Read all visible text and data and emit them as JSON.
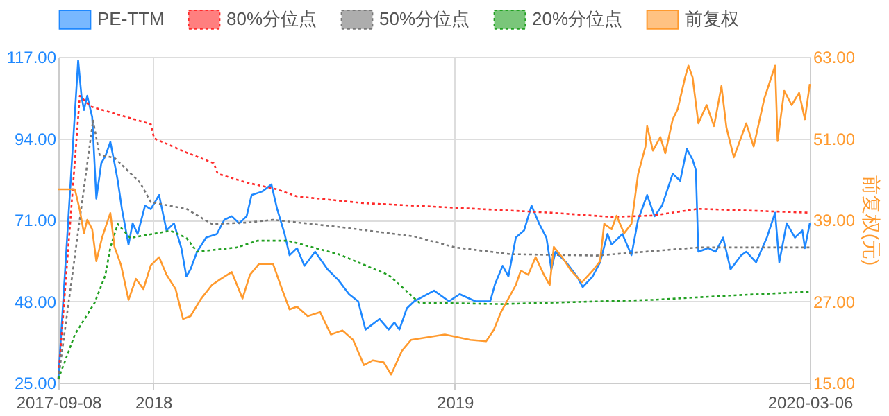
{
  "chart_data": {
    "type": "line",
    "y2label": "前复权(元)",
    "legend": "top",
    "grid": true,
    "xlim": [
      "2017-09-08",
      "2020-03-06"
    ],
    "xticks": [
      {
        "value": "2017-09-08",
        "label": "2017-09-08"
      },
      {
        "value": "2018-01-01",
        "label": "2018"
      },
      {
        "value": "2019-01-01",
        "label": "2019"
      },
      {
        "value": "2020-03-06",
        "label": "2020-03-06"
      }
    ],
    "ylim": [
      25,
      117
    ],
    "yticks": [
      {
        "value": 25,
        "label": "25.00"
      },
      {
        "value": 48,
        "label": "48.00"
      },
      {
        "value": 71,
        "label": "71.00"
      },
      {
        "value": 94,
        "label": "94.00"
      },
      {
        "value": 117,
        "label": "117.00"
      }
    ],
    "y2lim": [
      15,
      63
    ],
    "y2ticks": [
      {
        "value": 15,
        "label": "15.00"
      },
      {
        "value": 27,
        "label": "27.00"
      },
      {
        "value": 39,
        "label": "39.00"
      },
      {
        "value": 51,
        "label": "51.00"
      },
      {
        "value": 63,
        "label": "63.00"
      }
    ],
    "series": [
      {
        "name": "PE-TTM",
        "color": "#1e88ff",
        "line_style": "solid",
        "x": [
          "2017-09-08",
          "2017-10-02",
          "2017-10-06",
          "2017-10-09",
          "2017-10-13",
          "2017-10-19",
          "2017-10-24",
          "2017-10-30",
          "2017-11-04",
          "2017-11-10",
          "2017-11-15",
          "2017-11-19",
          "2017-11-24",
          "2017-12-02",
          "2017-12-07",
          "2017-12-13",
          "2017-12-22",
          "2017-12-29",
          "2018-01-08",
          "2018-01-17",
          "2018-01-26",
          "2018-02-04",
          "2018-02-10",
          "2018-02-15",
          "2018-02-23",
          "2018-03-06",
          "2018-03-19",
          "2018-03-28",
          "2018-04-06",
          "2018-04-15",
          "2018-04-24",
          "2018-04-30",
          "2018-05-13",
          "2018-05-24",
          "2018-05-31",
          "2018-06-09",
          "2018-06-15",
          "2018-06-24",
          "2018-07-03",
          "2018-07-16",
          "2018-07-31",
          "2018-08-13",
          "2018-08-26",
          "2018-09-06",
          "2018-09-15",
          "2018-10-02",
          "2018-10-13",
          "2018-10-20",
          "2018-10-26",
          "2018-11-04",
          "2018-11-13",
          "2018-12-07",
          "2018-12-25",
          "2019-01-07",
          "2019-01-26",
          "2019-02-13",
          "2019-02-19",
          "2019-02-28",
          "2019-03-07",
          "2019-03-16",
          "2019-03-26",
          "2019-04-04",
          "2019-04-13",
          "2019-04-22",
          "2019-04-28",
          "2019-05-03",
          "2019-05-16",
          "2019-05-29",
          "2019-06-05",
          "2019-06-17",
          "2019-06-26",
          "2019-07-05",
          "2019-07-10",
          "2019-07-23",
          "2019-08-03",
          "2019-08-11",
          "2019-08-22",
          "2019-08-31",
          "2019-09-09",
          "2019-09-22",
          "2019-10-01",
          "2019-10-09",
          "2019-10-16",
          "2019-10-20",
          "2019-10-23",
          "2019-11-04",
          "2019-11-13",
          "2019-11-22",
          "2019-12-01",
          "2019-12-14",
          "2019-12-20",
          "2020-01-01",
          "2020-01-14",
          "2020-01-24",
          "2020-01-29",
          "2020-02-07",
          "2020-02-17",
          "2020-02-26",
          "2020-02-29",
          "2020-03-06"
        ],
        "values": [
          26,
          116,
          106,
          102,
          106,
          100,
          77,
          87,
          89,
          93,
          87,
          82,
          74,
          64,
          70,
          67,
          75,
          74,
          78,
          68,
          70,
          63,
          55,
          57,
          62,
          66,
          67,
          71,
          72,
          70,
          72,
          78,
          79,
          81,
          74,
          67,
          61,
          63,
          58,
          62,
          57,
          54,
          50,
          48,
          40,
          43,
          40,
          42,
          40,
          46,
          48,
          51,
          48,
          50,
          48,
          48,
          53,
          58,
          55,
          66,
          68,
          75,
          70,
          66,
          57,
          62,
          59,
          55,
          52,
          55,
          59,
          67,
          64,
          67,
          61,
          71,
          78,
          72,
          75,
          84,
          82,
          91,
          88,
          85,
          62,
          63,
          62,
          66,
          57,
          61,
          62,
          59,
          66,
          73,
          59,
          70,
          66,
          68,
          63,
          70
        ]
      },
      {
        "name": "80%分位点",
        "color": "#ff2a2a",
        "line_style": "dotted",
        "x": [
          "2017-09-08",
          "2017-10-04",
          "2017-10-17",
          "2017-12-29",
          "2018-01-02",
          "2018-02-10",
          "2018-03-15",
          "2018-03-20",
          "2018-04-24",
          "2018-05-31",
          "2018-06-24",
          "2018-09-13",
          "2018-12-25",
          "2019-04-28",
          "2019-07-10",
          "2019-08-29",
          "2019-10-23",
          "2020-03-06"
        ],
        "values": [
          26,
          106,
          103,
          98,
          94,
          90,
          87,
          84,
          81.5,
          79.6,
          77.6,
          75.7,
          74.5,
          73,
          71.8,
          72.2,
          74.1,
          73
        ]
      },
      {
        "name": "50%分位点",
        "color": "#777777",
        "line_style": "dotted",
        "x": [
          "2017-09-08",
          "2017-10-20",
          "2017-10-28",
          "2017-11-15",
          "2017-12-16",
          "2017-12-29",
          "2018-02-10",
          "2018-03-13",
          "2018-04-24",
          "2018-05-26",
          "2018-08-13",
          "2018-11-13",
          "2019-01-02",
          "2019-03-09",
          "2019-06-22",
          "2019-10-23",
          "2020-03-06"
        ],
        "values": [
          26,
          99,
          89.3,
          88.5,
          81.5,
          76,
          74.1,
          69.8,
          70.2,
          71,
          69,
          66.3,
          63.2,
          61.3,
          60.9,
          63.2,
          63.2
        ]
      },
      {
        "name": "20%分位点",
        "color": "#22a022",
        "line_style": "dotted",
        "x": [
          "2017-09-08",
          "2017-09-28",
          "2017-10-22",
          "2017-11-04",
          "2017-11-10",
          "2017-11-19",
          "2017-12-04",
          "2018-01-22",
          "2018-02-10",
          "2018-02-23",
          "2018-04-12",
          "2018-05-07",
          "2018-06-13",
          "2018-08-13",
          "2018-10-13",
          "2018-10-26",
          "2018-11-19",
          "2019-02-26",
          "2019-08-29",
          "2019-11-29",
          "2020-03-06"
        ],
        "values": [
          26,
          38.6,
          47.6,
          55.4,
          63.2,
          69.8,
          65.9,
          67.9,
          65.9,
          62,
          63.2,
          65.1,
          65.1,
          61.3,
          55.4,
          52.7,
          47.6,
          47.2,
          48.4,
          49.6,
          50.7
        ]
      },
      {
        "name": "前复权",
        "color": "#ff9a2e",
        "line_style": "solid",
        "axis": "y2",
        "x": [
          "2017-09-08",
          "2017-09-28",
          "2017-09-30",
          "2017-10-04",
          "2017-10-09",
          "2017-10-13",
          "2017-10-19",
          "2017-10-24",
          "2017-10-31",
          "2017-11-10",
          "2017-11-15",
          "2017-11-23",
          "2017-12-02",
          "2017-12-11",
          "2017-12-20",
          "2017-12-29",
          "2018-01-08",
          "2018-01-17",
          "2018-01-28",
          "2018-02-06",
          "2018-02-15",
          "2018-02-28",
          "2018-03-13",
          "2018-03-24",
          "2018-04-06",
          "2018-04-19",
          "2018-04-28",
          "2018-05-09",
          "2018-05-26",
          "2018-06-04",
          "2018-06-15",
          "2018-06-24",
          "2018-07-07",
          "2018-07-22",
          "2018-08-04",
          "2018-08-18",
          "2018-08-31",
          "2018-09-13",
          "2018-09-24",
          "2018-10-07",
          "2018-10-16",
          "2018-10-29",
          "2018-11-09",
          "2018-12-20",
          "2019-01-20",
          "2019-02-08",
          "2019-02-17",
          "2019-02-26",
          "2019-03-07",
          "2019-03-16",
          "2019-03-22",
          "2019-03-31",
          "2019-04-09",
          "2019-04-19",
          "2019-04-26",
          "2019-05-01",
          "2019-05-11",
          "2019-05-22",
          "2019-06-04",
          "2019-06-17",
          "2019-06-26",
          "2019-07-01",
          "2019-07-10",
          "2019-07-16",
          "2019-07-25",
          "2019-08-03",
          "2019-08-11",
          "2019-08-20",
          "2019-08-22",
          "2019-08-29",
          "2019-09-07",
          "2019-09-13",
          "2019-09-22",
          "2019-09-28",
          "2019-10-07",
          "2019-10-11",
          "2019-10-16",
          "2019-10-23",
          "2019-11-02",
          "2019-11-11",
          "2019-11-20",
          "2019-11-26",
          "2019-12-05",
          "2019-12-20",
          "2019-12-29",
          "2020-01-11",
          "2020-01-24",
          "2020-01-27",
          "2020-02-04",
          "2020-02-13",
          "2020-02-22",
          "2020-02-29",
          "2020-03-06"
        ],
        "values": [
          43.5,
          43.5,
          42.5,
          40.4,
          37,
          39,
          37.6,
          32.9,
          36.4,
          40,
          35,
          32.3,
          27.2,
          30.3,
          28.8,
          32.3,
          33.5,
          30.9,
          28.8,
          24.4,
          24.8,
          27.4,
          29.4,
          30.3,
          31.3,
          27.4,
          30.9,
          32.5,
          32.5,
          29.4,
          25.8,
          26.2,
          24.8,
          25.4,
          22.1,
          22.7,
          21.3,
          17.6,
          18.3,
          18,
          16.2,
          19.7,
          21.3,
          22.1,
          21.3,
          21.1,
          22.7,
          25.4,
          27.4,
          29.4,
          31.5,
          30.9,
          33.5,
          30.9,
          29.4,
          35,
          33.5,
          31.5,
          29.8,
          31.5,
          32.9,
          38.4,
          37.6,
          39.6,
          37,
          38.4,
          45.7,
          49.8,
          52.8,
          49.2,
          51.2,
          48.8,
          53.8,
          55.3,
          60,
          61.7,
          60,
          53.2,
          55.9,
          52.8,
          58.7,
          52.6,
          48.2,
          53.2,
          49.8,
          56.9,
          61.7,
          50.6,
          58,
          55.9,
          57.7,
          53.8,
          59
        ]
      }
    ]
  }
}
